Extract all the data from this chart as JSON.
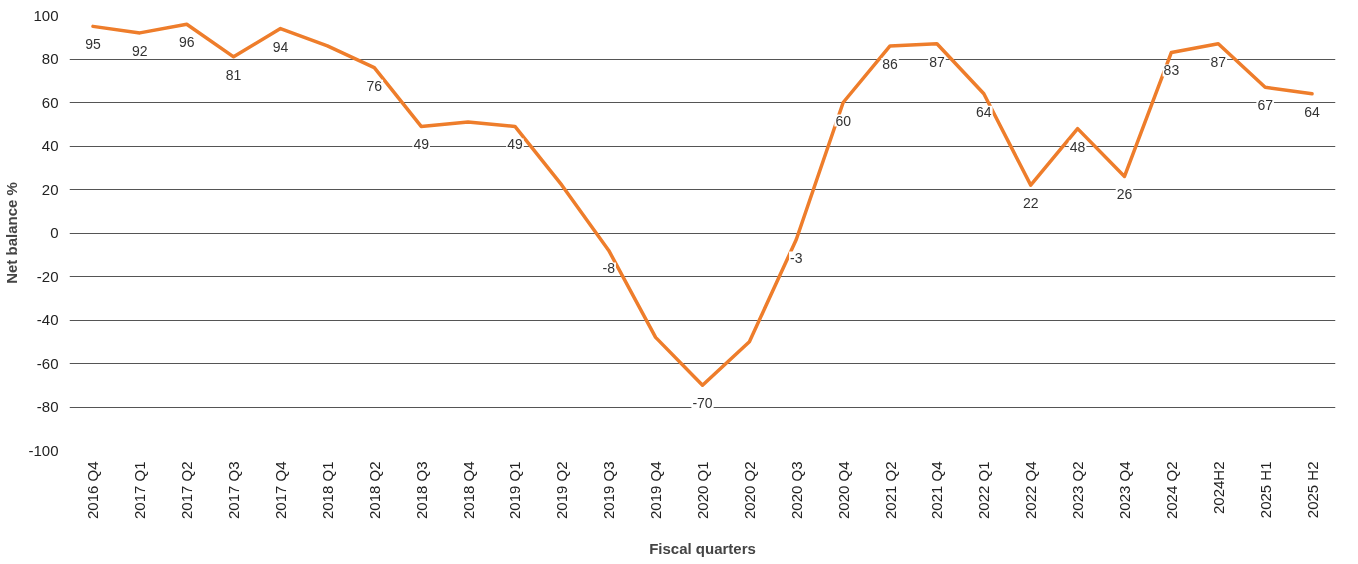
{
  "chart_data": {
    "type": "line",
    "xlabel": "Fiscal quarters",
    "ylabel": "Net balance %",
    "categories": [
      "2016 Q4",
      "2017 Q1",
      "2017 Q2",
      "2017 Q3",
      "2017 Q4",
      "2018 Q1",
      "2018 Q2",
      "2018 Q3",
      "2018 Q4",
      "2019 Q1",
      "2019 Q2",
      "2019 Q3",
      "2019 Q4",
      "2020 Q1",
      "2020 Q2",
      "2020 Q3",
      "2020 Q4",
      "2021 Q2",
      "2021 Q4",
      "2022 Q1",
      "2022 Q4",
      "2023 Q2",
      "2023 Q4",
      "2024 Q2",
      "2024H2",
      "2025 H1",
      "2025 H2"
    ],
    "values": [
      95,
      92,
      96,
      81,
      94,
      86,
      76,
      49,
      51,
      49,
      22,
      -8,
      -48,
      -70,
      -50,
      -3,
      60,
      86,
      87,
      64,
      22,
      48,
      26,
      83,
      87,
      67,
      64
    ],
    "value_labels": [
      "95",
      "92",
      "96",
      "81",
      "94",
      null,
      "76",
      "49",
      null,
      "49",
      null,
      "-8",
      null,
      "-70",
      null,
      "-3",
      "60",
      "86",
      "87",
      "64",
      "22",
      "48",
      "26",
      "83",
      "87",
      "67",
      "64"
    ],
    "color": "#ee7d2b",
    "ylim": [
      -100,
      100
    ],
    "yticks": [
      -100,
      -80,
      -60,
      -40,
      -20,
      0,
      20,
      40,
      60,
      80,
      100
    ],
    "grid": "y"
  }
}
